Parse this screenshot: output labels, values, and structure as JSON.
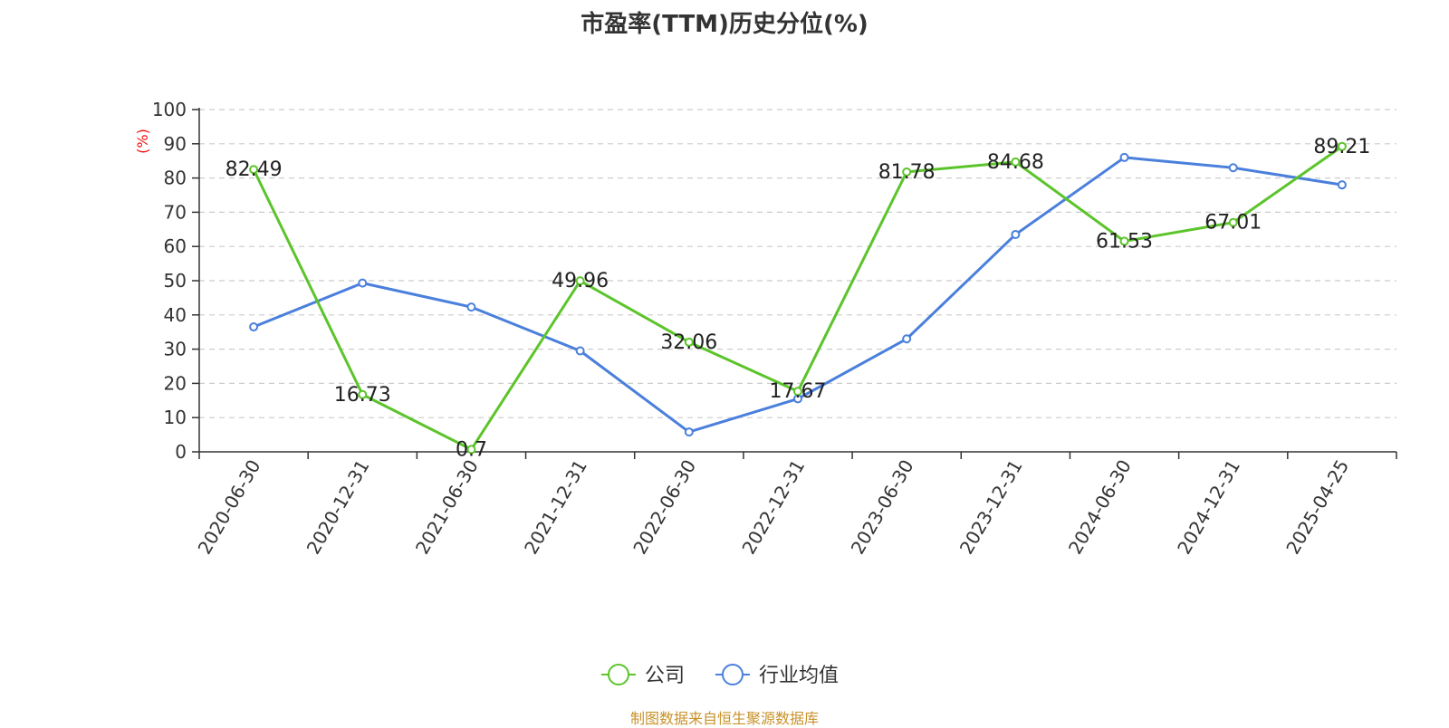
{
  "chart_data": {
    "type": "line",
    "title": "市盈率(TTM)历史分位(%)",
    "ylabel": "(%)",
    "ylim": [
      0,
      100
    ],
    "yticks": [
      0,
      10,
      20,
      30,
      40,
      50,
      60,
      70,
      80,
      90,
      100
    ],
    "grid": true,
    "legend_position": "bottom-center",
    "categories": [
      "2020-06-30",
      "2020-12-31",
      "2021-06-30",
      "2021-12-31",
      "2022-06-30",
      "2022-12-31",
      "2023-06-30",
      "2023-12-31",
      "2024-06-30",
      "2024-12-31",
      "2025-04-25"
    ],
    "series": [
      {
        "name": "公司",
        "color": "#5cc42b",
        "show_labels": true,
        "values": [
          82.49,
          16.73,
          0.7,
          49.96,
          32.06,
          17.67,
          81.78,
          84.68,
          61.53,
          67.01,
          89.21
        ],
        "labels": [
          "82.49",
          "16.73",
          "0.7",
          "49.96",
          "32.06",
          "17.67",
          "81.78",
          "84.68",
          "61.53",
          "67.01",
          "89.21"
        ]
      },
      {
        "name": "行业均值",
        "color": "#4a7fdc",
        "show_labels": false,
        "values": [
          36.5,
          49.3,
          42.3,
          29.5,
          5.8,
          15.5,
          33.0,
          63.5,
          86.0,
          83.0,
          78.0
        ]
      }
    ]
  },
  "footer": {
    "source": "制图数据来自恒生聚源数据库"
  }
}
